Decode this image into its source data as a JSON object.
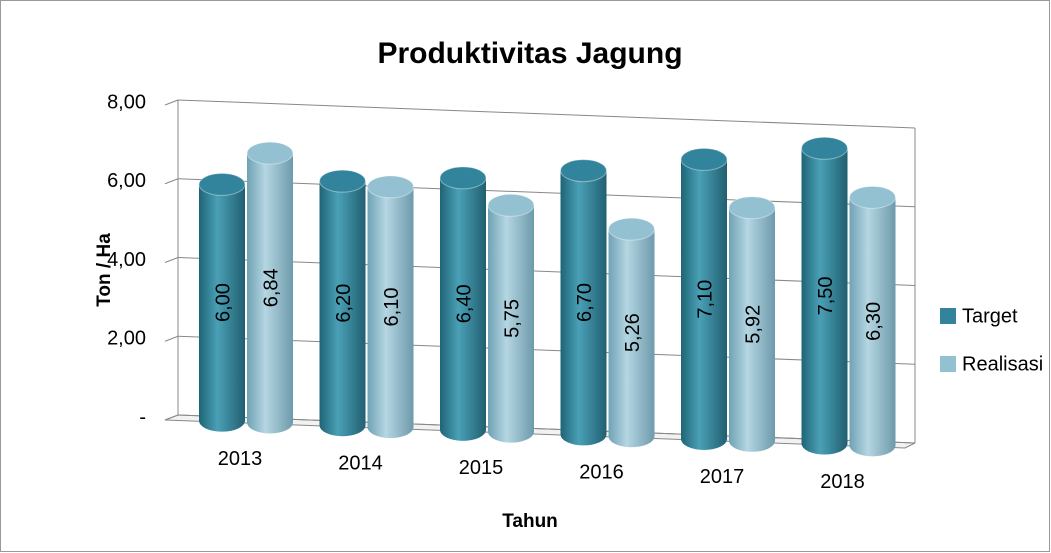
{
  "chart_data": {
    "type": "bar",
    "title": "Produktivitas Jagung",
    "x_label": "Tahun",
    "y_label": "Ton / Ha",
    "categories": [
      "2013",
      "2014",
      "2015",
      "2016",
      "2017",
      "2018"
    ],
    "series": [
      {
        "name": "Target",
        "color": "#31849b",
        "values": [
          6.0,
          6.2,
          6.4,
          6.7,
          7.1,
          7.5
        ],
        "value_labels": [
          "6,00",
          "6,20",
          "6,40",
          "6,70",
          "7,10",
          "7,50"
        ]
      },
      {
        "name": "Realisasi",
        "color": "#93c1d2",
        "values": [
          6.84,
          6.1,
          5.75,
          5.26,
          5.92,
          6.3
        ],
        "value_labels": [
          "6,84",
          "6,10",
          "5,75",
          "5,26",
          "5,92",
          "6,30"
        ]
      }
    ],
    "ylim": [
      0,
      8
    ],
    "yticks": [
      {
        "value": 0,
        "label": "-"
      },
      {
        "value": 2,
        "label": "2,00"
      },
      {
        "value": 4,
        "label": "4,00"
      },
      {
        "value": 6,
        "label": "6,00"
      },
      {
        "value": 8,
        "label": "8,00"
      }
    ],
    "grid": true,
    "legend": "right"
  }
}
